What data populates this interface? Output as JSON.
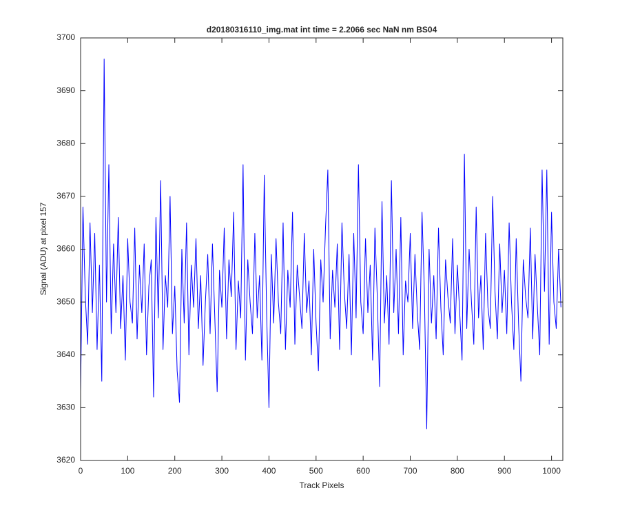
{
  "chart_data": {
    "type": "line",
    "title": "d20180316110_img.mat int time = 2.2066 sec  NaN nm BS04",
    "xlabel": "Track Pixels",
    "ylabel": "Signal (ADU) at pixel 157",
    "xlim": [
      0,
      1024
    ],
    "ylim": [
      3620,
      3700
    ],
    "xticks": [
      0,
      100,
      200,
      300,
      400,
      500,
      600,
      700,
      800,
      900,
      1000
    ],
    "yticks": [
      3620,
      3630,
      3640,
      3650,
      3660,
      3670,
      3680,
      3690,
      3700
    ],
    "grid": false,
    "x": [
      0,
      5,
      10,
      15,
      20,
      25,
      30,
      35,
      40,
      45,
      50,
      55,
      60,
      65,
      70,
      75,
      80,
      85,
      90,
      95,
      100,
      105,
      110,
      115,
      120,
      125,
      130,
      135,
      140,
      145,
      150,
      155,
      160,
      165,
      170,
      175,
      180,
      185,
      190,
      195,
      200,
      205,
      210,
      215,
      220,
      225,
      230,
      235,
      240,
      245,
      250,
      255,
      260,
      265,
      270,
      275,
      280,
      285,
      290,
      295,
      300,
      305,
      310,
      315,
      320,
      325,
      330,
      335,
      340,
      345,
      350,
      355,
      360,
      365,
      370,
      375,
      380,
      385,
      390,
      395,
      400,
      405,
      410,
      415,
      420,
      425,
      430,
      435,
      440,
      445,
      450,
      455,
      460,
      465,
      470,
      475,
      480,
      485,
      490,
      495,
      500,
      505,
      510,
      515,
      520,
      525,
      530,
      535,
      540,
      545,
      550,
      555,
      560,
      565,
      570,
      575,
      580,
      585,
      590,
      595,
      600,
      605,
      610,
      615,
      620,
      625,
      630,
      635,
      640,
      645,
      650,
      655,
      660,
      665,
      670,
      675,
      680,
      685,
      690,
      695,
      700,
      705,
      710,
      715,
      720,
      725,
      730,
      735,
      740,
      745,
      750,
      755,
      760,
      765,
      770,
      775,
      780,
      785,
      790,
      795,
      800,
      805,
      810,
      815,
      820,
      825,
      830,
      835,
      840,
      845,
      850,
      855,
      860,
      865,
      870,
      875,
      880,
      885,
      890,
      895,
      900,
      905,
      910,
      915,
      920,
      925,
      930,
      935,
      940,
      945,
      950,
      955,
      960,
      965,
      970,
      975,
      980,
      985,
      990,
      995,
      1000,
      1005,
      1010,
      1015,
      1020
    ],
    "series": [
      {
        "name": "signal",
        "color": "#0000ff",
        "values": [
          3633,
          3668,
          3651,
          3642,
          3665,
          3648,
          3663,
          3641,
          3657,
          3635,
          3696,
          3650,
          3676,
          3644,
          3661,
          3648,
          3666,
          3645,
          3655,
          3639,
          3662,
          3650,
          3646,
          3664,
          3643,
          3657,
          3648,
          3661,
          3640,
          3653,
          3658,
          3632,
          3666,
          3647,
          3673,
          3641,
          3655,
          3649,
          3670,
          3644,
          3653,
          3637,
          3631,
          3660,
          3646,
          3665,
          3640,
          3657,
          3649,
          3662,
          3645,
          3655,
          3638,
          3650,
          3659,
          3644,
          3661,
          3647,
          3633,
          3656,
          3649,
          3664,
          3643,
          3658,
          3651,
          3667,
          3641,
          3654,
          3647,
          3676,
          3639,
          3658,
          3650,
          3644,
          3663,
          3647,
          3655,
          3639,
          3674,
          3648,
          3630,
          3659,
          3646,
          3662,
          3650,
          3644,
          3665,
          3641,
          3656,
          3649,
          3667,
          3642,
          3657,
          3651,
          3645,
          3663,
          3648,
          3654,
          3640,
          3660,
          3646,
          3637,
          3658,
          3650,
          3664,
          3675,
          3643,
          3656,
          3649,
          3661,
          3641,
          3665,
          3652,
          3645,
          3659,
          3640,
          3663,
          3647,
          3676,
          3650,
          3644,
          3662,
          3648,
          3657,
          3639,
          3664,
          3651,
          3634,
          3669,
          3646,
          3655,
          3642,
          3673,
          3648,
          3660,
          3644,
          3666,
          3640,
          3654,
          3650,
          3663,
          3645,
          3659,
          3648,
          3641,
          3667,
          3652,
          3626,
          3660,
          3646,
          3655,
          3643,
          3664,
          3649,
          3640,
          3658,
          3651,
          3646,
          3662,
          3644,
          3657,
          3648,
          3639,
          3678,
          3645,
          3660,
          3650,
          3642,
          3668,
          3647,
          3655,
          3641,
          3663,
          3649,
          3645,
          3670,
          3652,
          3643,
          3661,
          3648,
          3656,
          3644,
          3665,
          3650,
          3641,
          3662,
          3646,
          3635,
          3658,
          3651,
          3647,
          3664,
          3643,
          3659,
          3649,
          3640,
          3675,
          3652,
          3675,
          3642,
          3667,
          3650,
          3645,
          3660,
          3649
        ]
      }
    ]
  }
}
